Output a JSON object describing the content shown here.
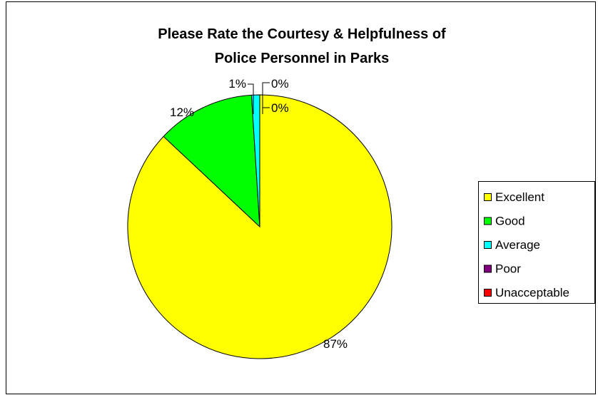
{
  "chart_data": {
    "type": "pie",
    "title": "Please Rate the Courtesy & Helpfulness of Police Personnel in Parks",
    "title_lines": [
      "Please Rate the Courtesy & Helpfulness of",
      "Police Personnel in Parks"
    ],
    "categories": [
      "Excellent",
      "Good",
      "Average",
      "Poor",
      "Unacceptable"
    ],
    "values": [
      87,
      12,
      1,
      0,
      0
    ],
    "data_labels": [
      "87%",
      "12%",
      "1%",
      "0%",
      "0%"
    ],
    "colors": [
      "#FFFF00",
      "#00FF00",
      "#00FFFF",
      "#800080",
      "#FF0000"
    ],
    "legend_position": "right",
    "start_angle_deg": 0,
    "direction": "clockwise"
  }
}
